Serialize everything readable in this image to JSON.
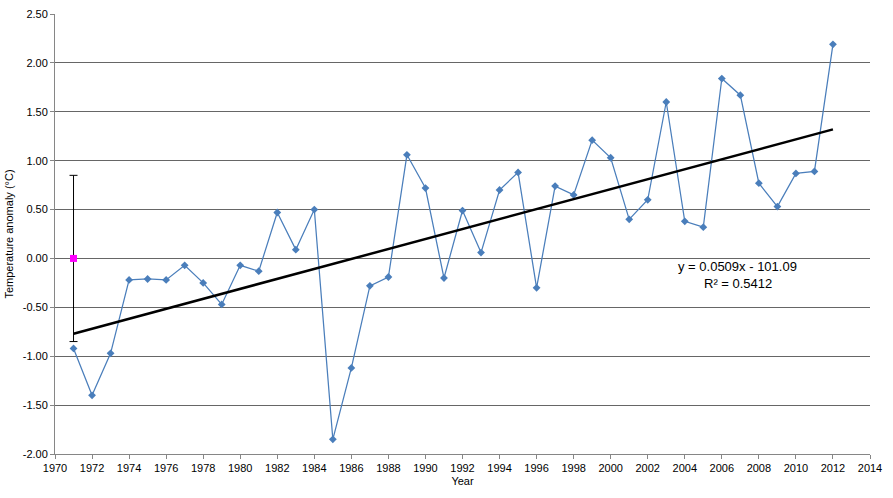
{
  "chart_data": {
    "type": "line",
    "x_label": "Year",
    "y_label": "Temperature anomaly (°C)",
    "xlim": [
      1970,
      2014
    ],
    "xticks": [
      1970,
      1972,
      1974,
      1976,
      1978,
      1980,
      1982,
      1984,
      1986,
      1988,
      1990,
      1992,
      1994,
      1996,
      1998,
      2000,
      2002,
      2004,
      2006,
      2008,
      2010,
      2012,
      2014
    ],
    "ylim": [
      -2.0,
      2.5
    ],
    "yticks": [
      {
        "value": -2.0,
        "label": "-2.00"
      },
      {
        "value": -1.5,
        "label": "-1.50"
      },
      {
        "value": -1.0,
        "label": "-1.00"
      },
      {
        "value": -0.5,
        "label": "-0.50"
      },
      {
        "value": 0,
        "label": "0.00"
      },
      {
        "value": 0.5,
        "label": "0.50"
      },
      {
        "value": 1.0,
        "label": "1.00"
      },
      {
        "value": 1.5,
        "label": "1.50"
      },
      {
        "value": 2.0,
        "label": "2.00"
      },
      {
        "value": 2.5,
        "label": "2.50"
      }
    ],
    "grid": true,
    "annotations": [
      "y = 0.0509x - 101.09",
      "R² = 0.5412"
    ],
    "series": [
      {
        "type": "line",
        "color": "#4a7ebb",
        "marker": "diamond",
        "line_style": "solid",
        "x": [
          1971,
          1972,
          1973,
          1974,
          1975,
          1976,
          1977,
          1978,
          1979,
          1980,
          1981,
          1982,
          1983,
          1984,
          1985,
          1986,
          1987,
          1988,
          1989,
          1990,
          1991,
          1992,
          1993,
          1994,
          1995,
          1996,
          1997,
          1998,
          1999,
          2000,
          2001,
          2002,
          2003,
          2004,
          2005,
          2006,
          2007,
          2008,
          2009,
          2010,
          2011,
          2012
        ],
        "values": [
          -0.92,
          -1.4,
          -0.97,
          -0.22,
          -0.21,
          -0.22,
          -0.07,
          -0.25,
          -0.47,
          -0.07,
          -0.13,
          0.47,
          0.09,
          0.5,
          -1.85,
          -1.12,
          -0.28,
          -0.19,
          1.06,
          0.72,
          -0.2,
          0.49,
          0.06,
          0.7,
          0.88,
          -0.3,
          0.74,
          0.65,
          1.21,
          1.03,
          0.4,
          0.6,
          1.6,
          0.38,
          0.32,
          1.84,
          1.67,
          0.77,
          0.53,
          0.87,
          0.89,
          2.19
        ]
      },
      {
        "type": "line",
        "color": "#000000",
        "marker": "none",
        "line_style": "solid",
        "x": [
          1971,
          2012
        ],
        "values": [
          -0.77,
          1.32
        ]
      },
      {
        "type": "scatter",
        "color": "#ff00ff",
        "marker": "square",
        "line_style": "none",
        "x": [
          1971
        ],
        "values": [
          0
        ],
        "error": [
          0.85
        ]
      }
    ]
  }
}
